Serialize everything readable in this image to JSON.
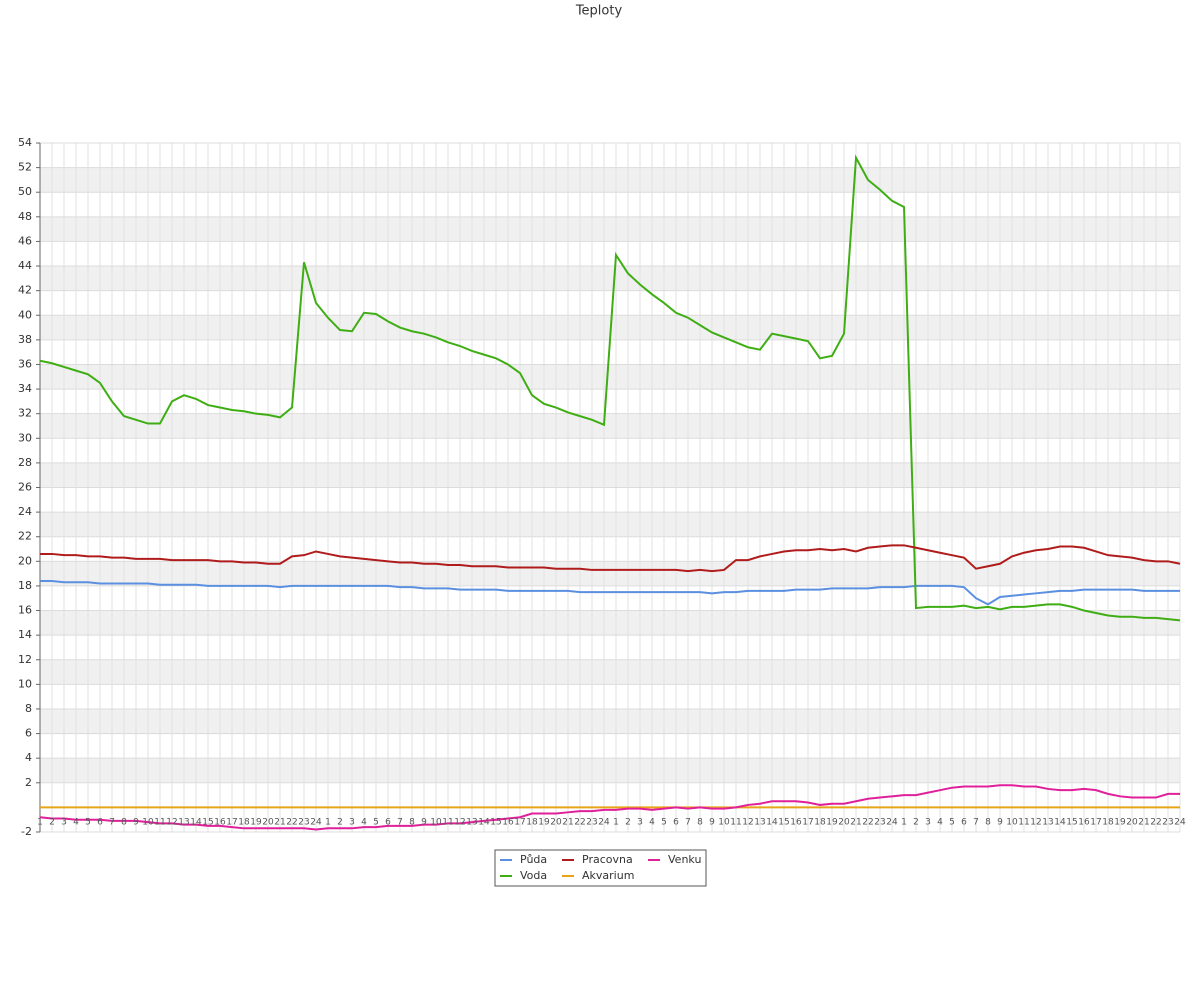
{
  "chart_data": {
    "type": "line",
    "title": "Teploty",
    "categories": [
      "1",
      "2",
      "3",
      "4",
      "5",
      "6",
      "7",
      "8",
      "9",
      "10",
      "11",
      "12",
      "13",
      "14",
      "15",
      "16",
      "17",
      "18",
      "19",
      "20",
      "21",
      "22",
      "23",
      "24",
      "1",
      "2",
      "3",
      "4",
      "5",
      "6",
      "7",
      "8",
      "9",
      "10",
      "11",
      "12",
      "13",
      "14",
      "15",
      "16",
      "17",
      "18",
      "19",
      "20",
      "21",
      "22",
      "23",
      "24",
      "1",
      "2",
      "3",
      "4",
      "5",
      "6",
      "7",
      "8",
      "9",
      "10",
      "11",
      "12",
      "13",
      "14",
      "15",
      "16",
      "17",
      "18",
      "19",
      "20",
      "21",
      "22",
      "23",
      "24",
      "1",
      "2",
      "3",
      "4",
      "5",
      "6",
      "7",
      "8",
      "9",
      "10",
      "11",
      "12",
      "13",
      "14",
      "15",
      "16",
      "17",
      "18",
      "19",
      "20",
      "21",
      "22",
      "23",
      "24"
    ],
    "ylim": [
      -2,
      54
    ],
    "yticks": [
      -2,
      2,
      4,
      6,
      8,
      10,
      12,
      14,
      16,
      18,
      20,
      22,
      24,
      26,
      28,
      30,
      32,
      34,
      36,
      38,
      40,
      42,
      44,
      46,
      48,
      50,
      52,
      54
    ],
    "grid": true,
    "series": [
      {
        "name": "Půda",
        "color": "#5b8fe0",
        "values": [
          18.4,
          18.4,
          18.3,
          18.3,
          18.3,
          18.2,
          18.2,
          18.2,
          18.2,
          18.2,
          18.1,
          18.1,
          18.1,
          18.1,
          18,
          18,
          18,
          18,
          18,
          18,
          17.9,
          18,
          18,
          18,
          18,
          18,
          18,
          18,
          18,
          18,
          17.9,
          17.9,
          17.8,
          17.8,
          17.8,
          17.7,
          17.7,
          17.7,
          17.7,
          17.6,
          17.6,
          17.6,
          17.6,
          17.6,
          17.6,
          17.5,
          17.5,
          17.5,
          17.5,
          17.5,
          17.5,
          17.5,
          17.5,
          17.5,
          17.5,
          17.5,
          17.4,
          17.5,
          17.5,
          17.6,
          17.6,
          17.6,
          17.6,
          17.7,
          17.7,
          17.7,
          17.8,
          17.8,
          17.8,
          17.8,
          17.9,
          17.9,
          17.9,
          18,
          18,
          18,
          18,
          17.9,
          17,
          16.5,
          17.1,
          17.2,
          17.3,
          17.4,
          17.5,
          17.6,
          17.6,
          17.7,
          17.7,
          17.7,
          17.7,
          17.7,
          17.6,
          17.6,
          17.6,
          17.6
        ]
      },
      {
        "name": "Voda",
        "color": "#3fae14",
        "values": [
          36.3,
          36.1,
          35.8,
          35.5,
          35.2,
          34.5,
          33,
          31.8,
          31.5,
          31.2,
          31.2,
          33,
          33.5,
          33.2,
          32.7,
          32.5,
          32.3,
          32.2,
          32,
          31.9,
          31.7,
          32.5,
          44.3,
          41,
          39.8,
          38.8,
          38.7,
          40.2,
          40.1,
          39.5,
          39,
          38.7,
          38.5,
          38.2,
          37.8,
          37.5,
          37.1,
          36.8,
          36.5,
          36,
          35.3,
          33.5,
          32.8,
          32.5,
          32.1,
          31.8,
          31.5,
          31.1,
          44.9,
          43.4,
          42.5,
          41.7,
          41,
          40.2,
          39.8,
          39.2,
          38.6,
          38.2,
          37.8,
          37.4,
          37.2,
          38.5,
          38.3,
          38.1,
          37.9,
          36.5,
          36.7,
          38.5,
          52.8,
          51,
          50.2,
          49.3,
          48.8,
          16.2,
          16.3,
          16.3,
          16.3,
          16.4,
          16.2,
          16.3,
          16.1,
          16.3,
          16.3,
          16.4,
          16.5,
          16.5,
          16.3,
          16,
          15.8,
          15.6,
          15.5,
          15.5,
          15.4,
          15.4,
          15.3,
          15.2
        ]
      },
      {
        "name": "Pracovna",
        "color": "#b01c1c",
        "values": [
          20.6,
          20.6,
          20.5,
          20.5,
          20.4,
          20.4,
          20.3,
          20.3,
          20.2,
          20.2,
          20.2,
          20.1,
          20.1,
          20.1,
          20.1,
          20,
          20,
          19.9,
          19.9,
          19.8,
          19.8,
          20.4,
          20.5,
          20.8,
          20.6,
          20.4,
          20.3,
          20.2,
          20.1,
          20,
          19.9,
          19.9,
          19.8,
          19.8,
          19.7,
          19.7,
          19.6,
          19.6,
          19.6,
          19.5,
          19.5,
          19.5,
          19.5,
          19.4,
          19.4,
          19.4,
          19.3,
          19.3,
          19.3,
          19.3,
          19.3,
          19.3,
          19.3,
          19.3,
          19.2,
          19.3,
          19.2,
          19.3,
          20.1,
          20.1,
          20.4,
          20.6,
          20.8,
          20.9,
          20.9,
          21,
          20.9,
          21,
          20.8,
          21.1,
          21.2,
          21.3,
          21.3,
          21.1,
          20.9,
          20.7,
          20.5,
          20.3,
          19.4,
          19.6,
          19.8,
          20.4,
          20.7,
          20.9,
          21,
          21.2,
          21.2,
          21.1,
          20.8,
          20.5,
          20.4,
          20.3,
          20.1,
          20,
          20,
          19.8
        ]
      },
      {
        "name": "Akvarium",
        "color": "#e8a317",
        "values": [
          0,
          0,
          0,
          0,
          0,
          0,
          0,
          0,
          0,
          0,
          0,
          0,
          0,
          0,
          0,
          0,
          0,
          0,
          0,
          0,
          0,
          0,
          0,
          0,
          0,
          0,
          0,
          0,
          0,
          0,
          0,
          0,
          0,
          0,
          0,
          0,
          0,
          0,
          0,
          0,
          0,
          0,
          0,
          0,
          0,
          0,
          0,
          0,
          0,
          0,
          0,
          0,
          0,
          0,
          0,
          0,
          0,
          0,
          0,
          0,
          0,
          0,
          0,
          0,
          0,
          0,
          0,
          0,
          0,
          0,
          0,
          0,
          0,
          0,
          0,
          0,
          0,
          0,
          0,
          0,
          0,
          0,
          0,
          0,
          0,
          0,
          0,
          0,
          0,
          0,
          0,
          0,
          0,
          0,
          0,
          0
        ]
      },
      {
        "name": "Venku",
        "color": "#e0209a",
        "values": [
          -0.8,
          -0.9,
          -0.9,
          -1,
          -1,
          -1,
          -1.1,
          -1.1,
          -1.1,
          -1.2,
          -1.3,
          -1.3,
          -1.4,
          -1.4,
          -1.5,
          -1.5,
          -1.6,
          -1.7,
          -1.7,
          -1.7,
          -1.7,
          -1.7,
          -1.7,
          -1.8,
          -1.7,
          -1.7,
          -1.7,
          -1.6,
          -1.6,
          -1.5,
          -1.5,
          -1.5,
          -1.4,
          -1.4,
          -1.3,
          -1.3,
          -1.2,
          -1.1,
          -1,
          -0.9,
          -0.8,
          -0.5,
          -0.5,
          -0.5,
          -0.4,
          -0.3,
          -0.3,
          -0.2,
          -0.2,
          -0.1,
          -0.1,
          -0.2,
          -0.1,
          0,
          -0.1,
          0,
          -0.1,
          -0.1,
          0,
          0.2,
          0.3,
          0.5,
          0.5,
          0.5,
          0.4,
          0.2,
          0.3,
          0.3,
          0.5,
          0.7,
          0.8,
          0.9,
          1,
          1,
          1.2,
          1.4,
          1.6,
          1.7,
          1.7,
          1.7,
          1.8,
          1.8,
          1.7,
          1.7,
          1.5,
          1.4,
          1.4,
          1.5,
          1.4,
          1.1,
          0.9,
          0.8,
          0.8,
          0.8,
          1.1,
          1.1
        ]
      }
    ]
  }
}
